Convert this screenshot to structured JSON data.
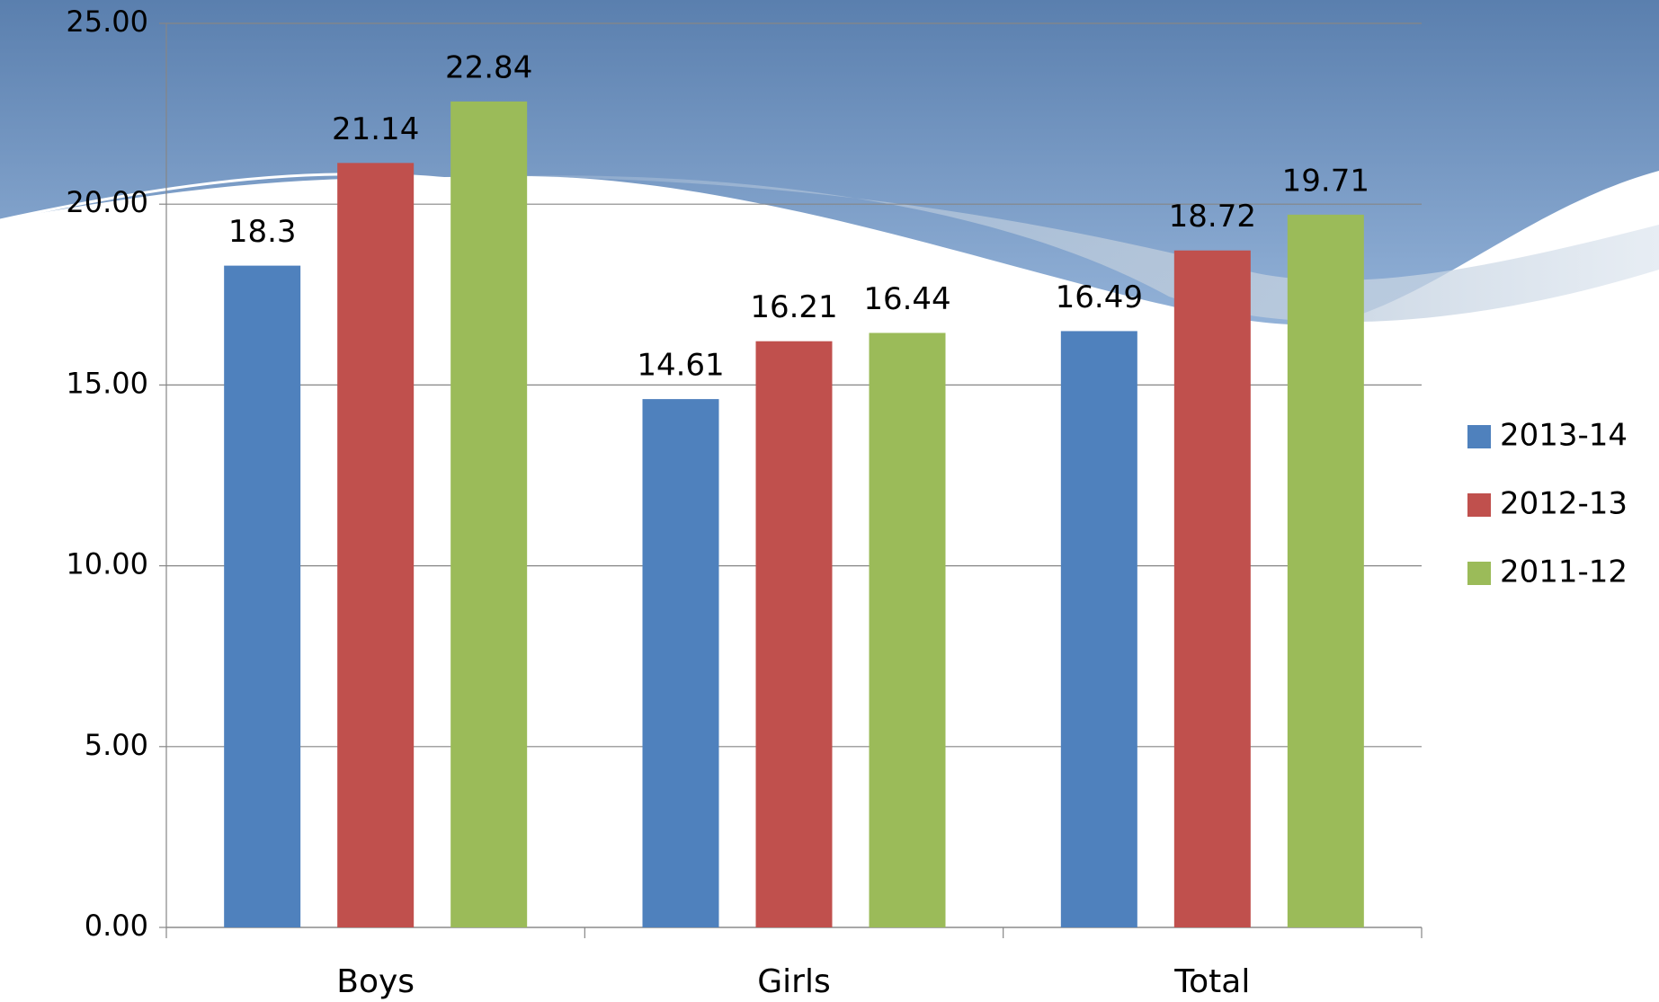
{
  "chart_data": {
    "type": "bar",
    "categories": [
      "Boys",
      "Girls",
      "Total"
    ],
    "series": [
      {
        "name": "2013-14",
        "color": "#4f81bd",
        "values": [
          18.3,
          14.61,
          16.49
        ]
      },
      {
        "name": "2012-13",
        "color": "#c0504d",
        "values": [
          21.14,
          16.21,
          18.72
        ]
      },
      {
        "name": "2011-12",
        "color": "#9bbb59",
        "values": [
          22.84,
          16.44,
          19.71
        ]
      }
    ],
    "ylim": [
      0,
      25
    ],
    "yticks": [
      {
        "value": 0,
        "label": "0.00"
      },
      {
        "value": 5,
        "label": "5.00"
      },
      {
        "value": 10,
        "label": "10.00"
      },
      {
        "value": 15,
        "label": "15.00"
      },
      {
        "value": 20,
        "label": "20.00"
      },
      {
        "value": 25,
        "label": "25.00"
      }
    ],
    "grid": true,
    "legend": "right"
  }
}
